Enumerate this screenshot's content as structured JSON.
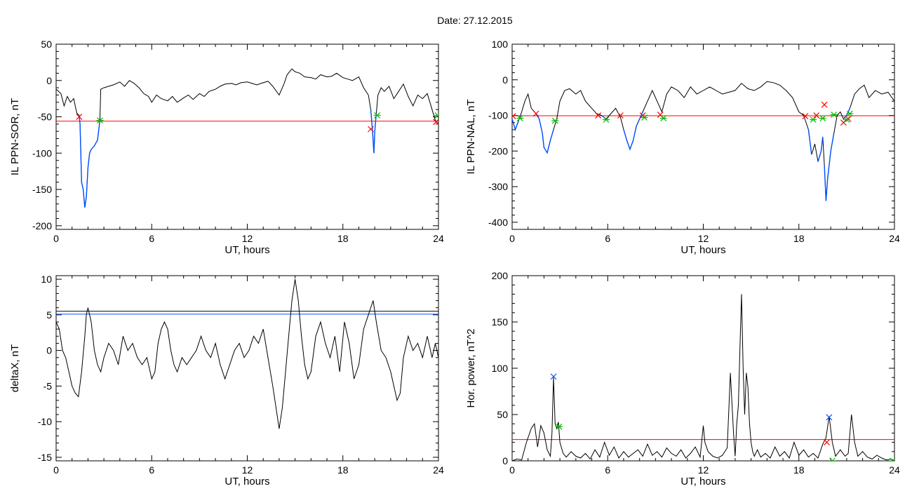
{
  "title": "Date:  27.12.2015",
  "colors": {
    "axis": "#000000",
    "signal": "#000000",
    "threshold": "#ff0000",
    "highlight": "#0050ff",
    "start_marker": "#ff0000",
    "end_marker": "#00bb00",
    "alt_threshold": "#0050ff",
    "peak_marker": "#0050ff"
  },
  "chart_data": [
    {
      "type": "line",
      "xlabel": "UT, hours",
      "ylabel": "IL PPN-SOR, nT",
      "xlim": [
        0,
        24
      ],
      "ylim": [
        -205,
        50
      ],
      "xticks": [
        0,
        6,
        12,
        18,
        24
      ],
      "yticks": [
        50,
        0,
        -50,
        -100,
        -150,
        -200
      ],
      "series": [
        {
          "x": [
            0,
            0.3,
            0.5,
            0.7,
            0.9,
            1.1,
            1.3,
            1.45,
            1.5,
            1.6,
            1.7,
            1.8,
            1.9,
            2.0,
            2.1,
            2.2,
            2.4,
            2.6,
            2.75,
            2.8,
            3.0,
            3.3,
            3.6,
            4.0,
            4.3,
            4.6,
            4.9,
            5.2,
            5.5,
            5.8,
            6.0,
            6.3,
            6.6,
            7.0,
            7.3,
            7.6,
            8.0,
            8.3,
            8.6,
            9.0,
            9.3,
            9.6,
            10.0,
            10.3,
            10.6,
            11.0,
            11.3,
            11.6,
            12.0,
            12.3,
            12.6,
            13.0,
            13.3,
            13.6,
            14.0,
            14.3,
            14.5,
            14.8,
            15.0,
            15.3,
            15.6,
            16.0,
            16.3,
            16.6,
            17.0,
            17.3,
            17.6,
            18.0,
            18.3,
            18.6,
            19.0,
            19.3,
            19.6,
            19.75,
            19.85,
            19.95,
            20.0,
            20.1,
            20.2,
            20.4,
            20.6,
            20.9,
            21.2,
            21.5,
            21.8,
            22.1,
            22.4,
            22.7,
            23.0,
            23.3,
            23.6,
            23.8,
            24.0
          ],
          "y": [
            -12,
            -18,
            -35,
            -22,
            -30,
            -25,
            -45,
            -48,
            -60,
            -140,
            -150,
            -175,
            -160,
            -120,
            -100,
            -95,
            -90,
            -82,
            -55,
            -12,
            -10,
            -8,
            -6,
            -2,
            -8,
            0,
            -4,
            -10,
            -18,
            -22,
            -30,
            -20,
            -25,
            -28,
            -22,
            -30,
            -24,
            -20,
            -26,
            -18,
            -22,
            -15,
            -12,
            -8,
            -5,
            -4,
            -6,
            -3,
            -2,
            -4,
            -6,
            -3,
            -1,
            -8,
            -20,
            -5,
            8,
            16,
            12,
            10,
            5,
            4,
            2,
            8,
            5,
            6,
            10,
            4,
            2,
            0,
            5,
            -10,
            -20,
            -40,
            -67,
            -100,
            -70,
            -45,
            -20,
            -10,
            -15,
            -8,
            -25,
            -15,
            -5,
            -22,
            -35,
            -20,
            -25,
            -18,
            -40,
            -55,
            -60
          ]
        }
      ],
      "thresholds": [
        {
          "value": -56
        }
      ],
      "highlight_intervals": [
        [
          1.45,
          2.75
        ],
        [
          19.75,
          20.15
        ]
      ],
      "start_markers": [
        {
          "x": 1.45,
          "y": -50
        },
        {
          "x": 19.75,
          "y": -67
        },
        {
          "x": 23.85,
          "y": -57
        }
      ],
      "end_markers": [
        {
          "x": 2.75,
          "y": -55
        },
        {
          "x": 20.15,
          "y": -48
        },
        {
          "x": 23.95,
          "y": -48
        }
      ]
    },
    {
      "type": "line",
      "xlabel": "UT, hours",
      "ylabel": "IL PPN-NAL, nT",
      "xlim": [
        0,
        24
      ],
      "ylim": [
        -420,
        100
      ],
      "xticks": [
        0,
        6,
        12,
        18,
        24
      ],
      "yticks": [
        100,
        0,
        -100,
        -200,
        -300,
        -400
      ],
      "series": [
        {
          "x": [
            0,
            0.2,
            0.4,
            0.6,
            0.8,
            1.0,
            1.2,
            1.5,
            1.7,
            1.9,
            2.0,
            2.2,
            2.4,
            2.6,
            2.8,
            3.0,
            3.3,
            3.6,
            4.0,
            4.3,
            4.6,
            5.0,
            5.3,
            5.6,
            5.9,
            6.2,
            6.5,
            6.8,
            7.0,
            7.2,
            7.4,
            7.6,
            7.8,
            8.0,
            8.2,
            8.5,
            8.8,
            9.1,
            9.4,
            9.7,
            10.0,
            10.4,
            10.8,
            11.2,
            11.6,
            12.0,
            12.4,
            12.8,
            13.2,
            13.6,
            14.0,
            14.4,
            14.8,
            15.2,
            15.6,
            16.0,
            16.4,
            16.8,
            17.2,
            17.6,
            18.0,
            18.3,
            18.6,
            18.8,
            19.0,
            19.2,
            19.4,
            19.5,
            19.6,
            19.7,
            19.8,
            20.0,
            20.2,
            20.4,
            20.6,
            20.8,
            21.0,
            21.2,
            21.5,
            21.8,
            22.1,
            22.4,
            22.8,
            23.2,
            23.6,
            24.0
          ],
          "y": [
            -110,
            -140,
            -115,
            -90,
            -60,
            -40,
            -80,
            -95,
            -110,
            -150,
            -190,
            -205,
            -170,
            -140,
            -110,
            -60,
            -30,
            -25,
            -40,
            -30,
            -60,
            -80,
            -95,
            -100,
            -110,
            -95,
            -80,
            -105,
            -140,
            -170,
            -195,
            -170,
            -130,
            -110,
            -90,
            -60,
            -30,
            -60,
            -90,
            -40,
            -20,
            -30,
            -50,
            -20,
            -40,
            -30,
            -20,
            -30,
            -40,
            -35,
            -30,
            -10,
            -25,
            -30,
            -20,
            -5,
            -8,
            -15,
            -30,
            -50,
            -90,
            -100,
            -140,
            -210,
            -180,
            -230,
            -200,
            -160,
            -240,
            -340,
            -280,
            -200,
            -150,
            -100,
            -90,
            -110,
            -100,
            -80,
            -40,
            -25,
            -15,
            -50,
            -30,
            -40,
            -35,
            -60
          ]
        }
      ],
      "thresholds": [
        {
          "value": -101
        }
      ],
      "highlight_intervals": [
        [
          0,
          0.5
        ],
        [
          1.5,
          2.7
        ],
        [
          5.6,
          6.0
        ],
        [
          7.0,
          8.2
        ],
        [
          18.4,
          18.9
        ],
        [
          19.1,
          19.5
        ],
        [
          19.6,
          20.2
        ],
        [
          20.8,
          21.3
        ]
      ],
      "start_markers": [
        {
          "x": 0.05,
          "y": -102
        },
        {
          "x": 1.5,
          "y": -95
        },
        {
          "x": 5.4,
          "y": -100
        },
        {
          "x": 6.8,
          "y": -100
        },
        {
          "x": 8.2,
          "y": -100
        },
        {
          "x": 9.3,
          "y": -98
        },
        {
          "x": 18.4,
          "y": -102
        },
        {
          "x": 19.1,
          "y": -100
        },
        {
          "x": 19.6,
          "y": -70
        },
        {
          "x": 20.8,
          "y": -120
        },
        {
          "x": 21.1,
          "y": -110
        }
      ],
      "end_markers": [
        {
          "x": 0.5,
          "y": -108
        },
        {
          "x": 2.7,
          "y": -115
        },
        {
          "x": 5.9,
          "y": -112
        },
        {
          "x": 8.3,
          "y": -106
        },
        {
          "x": 9.5,
          "y": -108
        },
        {
          "x": 18.9,
          "y": -112
        },
        {
          "x": 19.5,
          "y": -108
        },
        {
          "x": 20.2,
          "y": -98
        },
        {
          "x": 21.2,
          "y": -95
        },
        {
          "x": 21.0,
          "y": -112
        }
      ]
    },
    {
      "type": "line",
      "xlabel": "UT, hours",
      "ylabel": "deltaX, nT",
      "xlim": [
        0,
        24
      ],
      "ylim": [
        -15.5,
        10.5
      ],
      "xticks": [
        0,
        6,
        12,
        18,
        24
      ],
      "yticks": [
        10,
        5,
        0,
        -5,
        -10,
        -15
      ],
      "series": [
        {
          "x": [
            0,
            0.2,
            0.4,
            0.6,
            0.8,
            1.0,
            1.2,
            1.4,
            1.6,
            1.8,
            1.9,
            2.0,
            2.2,
            2.4,
            2.6,
            2.8,
            3.0,
            3.3,
            3.6,
            3.9,
            4.2,
            4.5,
            4.8,
            5.1,
            5.4,
            5.7,
            6.0,
            6.2,
            6.4,
            6.6,
            6.8,
            7.0,
            7.2,
            7.4,
            7.6,
            7.9,
            8.2,
            8.5,
            8.8,
            9.1,
            9.4,
            9.7,
            10.0,
            10.3,
            10.6,
            10.9,
            11.2,
            11.5,
            11.8,
            12.1,
            12.4,
            12.7,
            13.0,
            13.3,
            13.6,
            13.8,
            14.0,
            14.2,
            14.4,
            14.6,
            14.8,
            15.0,
            15.2,
            15.4,
            15.6,
            15.8,
            16.0,
            16.3,
            16.6,
            16.9,
            17.2,
            17.5,
            17.8,
            18.1,
            18.4,
            18.7,
            19.0,
            19.3,
            19.6,
            19.9,
            20.1,
            20.4,
            20.7,
            21.0,
            21.2,
            21.4,
            21.6,
            21.8,
            22.1,
            22.4,
            22.7,
            23.0,
            23.3,
            23.6,
            23.8,
            24.0
          ],
          "y": [
            4,
            3,
            0,
            -1,
            -3,
            -5,
            -6,
            -6.5,
            -3,
            2,
            5,
            6,
            4,
            0,
            -2,
            -3,
            -1,
            1,
            0,
            -2,
            2,
            0,
            1,
            -1,
            -2,
            -1,
            -4,
            -3,
            1,
            3,
            4,
            3,
            0,
            -2,
            -3,
            -1,
            -2,
            -1,
            0,
            2,
            0,
            -1,
            1,
            -2,
            -4,
            -2,
            0,
            1,
            -1,
            0,
            2,
            1,
            3,
            -1,
            -5,
            -8,
            -11,
            -8,
            -3,
            2,
            7,
            10,
            7,
            2,
            -2,
            -4,
            -3,
            2,
            4,
            1,
            -1,
            2,
            -3,
            4,
            1,
            -4,
            -2,
            3,
            5,
            7,
            4,
            0,
            -1,
            -3,
            -5,
            -7,
            -6,
            -1,
            2,
            0,
            1,
            -1,
            2,
            -1,
            1,
            -1
          ]
        }
      ],
      "thresholds": [
        {
          "value": 5.5,
          "color": "#000000"
        },
        {
          "value": 5.1,
          "color": "#0050ff"
        }
      ],
      "highlight_intervals": [],
      "start_markers": [],
      "end_markers": []
    },
    {
      "type": "line",
      "xlabel": "UT, hours",
      "ylabel": "Hor. power, nT^2",
      "xlim": [
        0,
        24
      ],
      "ylim": [
        0,
        200
      ],
      "xticks": [
        0,
        6,
        12,
        18,
        24
      ],
      "yticks": [
        200,
        150,
        100,
        50,
        0
      ],
      "series": [
        {
          "x": [
            0,
            0.3,
            0.6,
            0.9,
            1.2,
            1.4,
            1.6,
            1.8,
            2.0,
            2.2,
            2.4,
            2.5,
            2.6,
            2.7,
            2.8,
            2.9,
            3.0,
            3.2,
            3.4,
            3.7,
            4.0,
            4.3,
            4.6,
            4.9,
            5.2,
            5.5,
            5.8,
            6.1,
            6.4,
            6.7,
            7.0,
            7.3,
            7.6,
            7.9,
            8.2,
            8.5,
            8.8,
            9.1,
            9.4,
            9.7,
            10.0,
            10.3,
            10.6,
            10.9,
            11.2,
            11.5,
            11.8,
            12.0,
            12.1,
            12.3,
            12.6,
            12.9,
            13.2,
            13.5,
            13.7,
            13.9,
            14.0,
            14.1,
            14.2,
            14.3,
            14.4,
            14.5,
            14.6,
            14.7,
            14.8,
            14.9,
            15.0,
            15.1,
            15.2,
            15.4,
            15.6,
            15.9,
            16.2,
            16.5,
            16.8,
            17.1,
            17.4,
            17.7,
            18.0,
            18.3,
            18.6,
            18.9,
            19.2,
            19.5,
            19.7,
            19.9,
            20.1,
            20.3,
            20.6,
            20.9,
            21.1,
            21.3,
            21.5,
            21.7,
            22.0,
            22.3,
            22.6,
            22.9,
            23.2,
            23.5,
            23.8,
            24.0
          ],
          "y": [
            0,
            2,
            1,
            20,
            35,
            40,
            15,
            38,
            30,
            12,
            5,
            30,
            90,
            40,
            35,
            42,
            20,
            8,
            4,
            10,
            5,
            3,
            8,
            2,
            12,
            4,
            20,
            6,
            15,
            3,
            10,
            4,
            8,
            12,
            5,
            18,
            6,
            10,
            4,
            14,
            8,
            5,
            12,
            3,
            8,
            15,
            4,
            38,
            20,
            10,
            5,
            3,
            6,
            14,
            95,
            30,
            5,
            40,
            60,
            120,
            180,
            100,
            50,
            95,
            80,
            40,
            20,
            10,
            5,
            12,
            4,
            8,
            3,
            15,
            5,
            10,
            3,
            20,
            6,
            12,
            4,
            8,
            3,
            18,
            25,
            48,
            20,
            5,
            12,
            5,
            8,
            50,
            20,
            5,
            10,
            4,
            2,
            6,
            3,
            1,
            2,
            0
          ]
        }
      ],
      "thresholds": [
        {
          "value": 23
        }
      ],
      "highlight_intervals": [],
      "peak_markers": [
        {
          "x": 2.6,
          "y": 91
        },
        {
          "x": 19.9,
          "y": 47
        }
      ],
      "start_markers": [
        {
          "x": 19.75,
          "y": 20
        }
      ],
      "end_markers": [
        {
          "x": 2.95,
          "y": 37
        },
        {
          "x": 20.1,
          "y": 0
        },
        {
          "x": 23.9,
          "y": 0
        }
      ]
    }
  ]
}
